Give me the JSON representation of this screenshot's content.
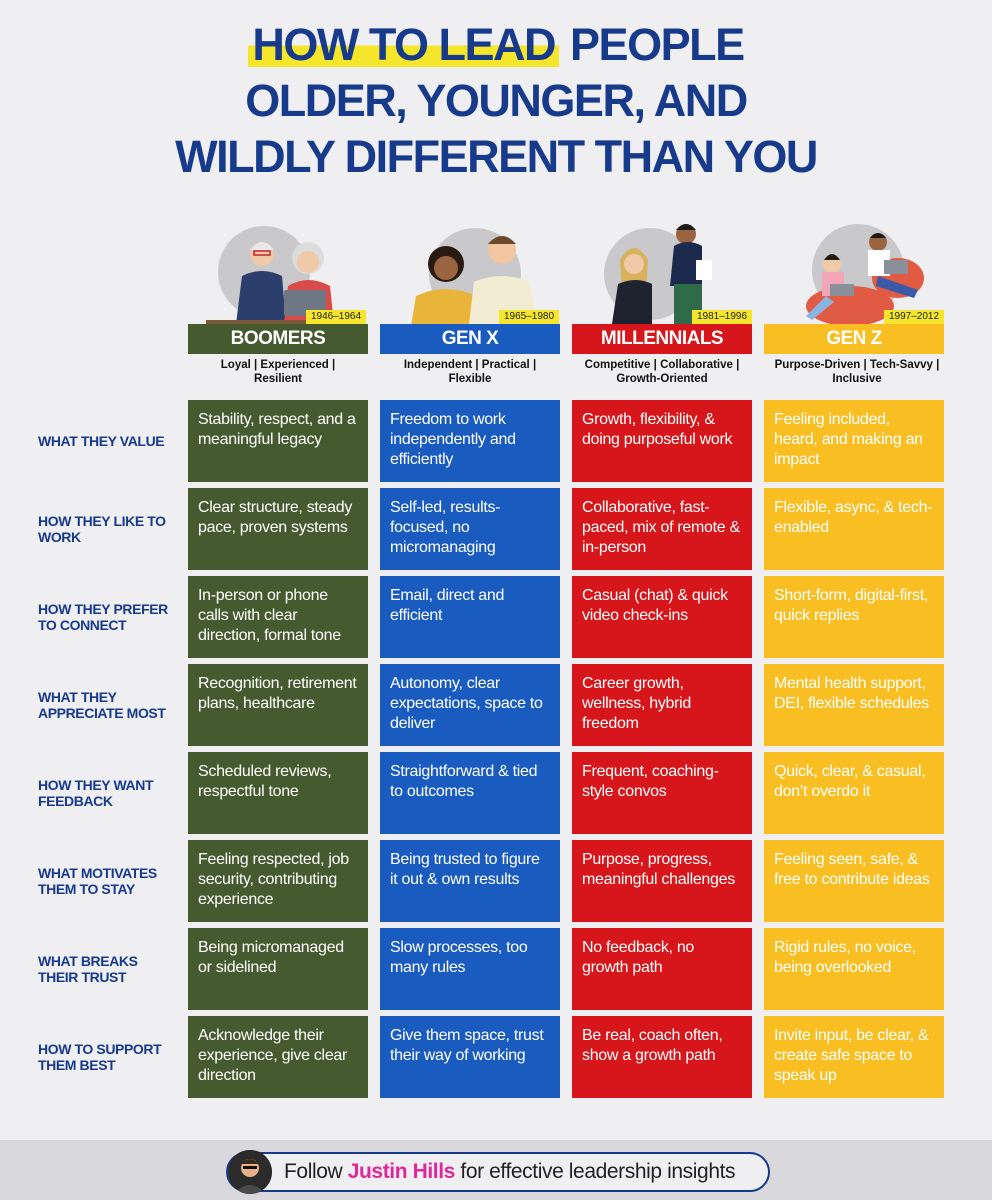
{
  "title": {
    "line1_highlight": "HOW TO LEAD",
    "line1_rest": "PEOPLE",
    "line2": "OLDER, YOUNGER, AND",
    "line3": "WILDLY DIFFERENT THAN YOU"
  },
  "colors": {
    "title_blue": "#173a8a",
    "highlight_yellow": "#f5e62c",
    "boomers": "#455b2f",
    "genx": "#1a5bc0",
    "millennials": "#d7161b",
    "genz": "#f8be22",
    "footer_name": "#e0269b"
  },
  "generations": [
    {
      "name": "BOOMERS",
      "years": "1946–1964",
      "traits": "Loyal | Experienced | Resilient"
    },
    {
      "name": "GEN X",
      "years": "1965–1980",
      "traits": "Independent | Practical | Flexible"
    },
    {
      "name": "MILLENNIALS",
      "years": "1981–1996",
      "traits": "Competitive | Collaborative | Growth-Oriented"
    },
    {
      "name": "GEN Z",
      "years": "1997–2012",
      "traits": "Purpose-Driven | Tech-Savvy | Inclusive"
    }
  ],
  "rows": [
    {
      "label": "WHAT THEY VALUE",
      "cells": [
        "Stability, respect, and a meaningful legacy",
        "Freedom to work independently and efficiently",
        "Growth, flexibility, & doing purposeful work",
        "Feeling included, heard, and making an impact"
      ]
    },
    {
      "label": "HOW THEY LIKE TO WORK",
      "cells": [
        "Clear structure, steady pace, proven systems",
        "Self-led, results-focused, no micromanaging",
        "Collaborative, fast-paced, mix of remote & in-person",
        "Flexible, async, & tech-enabled"
      ]
    },
    {
      "label": "HOW THEY PREFER TO CONNECT",
      "cells": [
        "In-person or phone calls with clear direction, formal tone",
        "Email, direct and efficient",
        "Casual (chat) & quick video check-ins",
        "Short-form, digital-first, quick replies"
      ]
    },
    {
      "label": "WHAT THEY APPRECIATE MOST",
      "cells": [
        "Recognition, retirement plans, healthcare",
        "Autonomy, clear expectations, space to deliver",
        "Career growth, wellness, hybrid freedom",
        "Mental health support, DEI, flexible schedules"
      ]
    },
    {
      "label": "HOW THEY WANT FEEDBACK",
      "cells": [
        "Scheduled reviews, respectful tone",
        "Straightforward & tied to outcomes",
        "Frequent, coaching-style convos",
        "Quick, clear, & casual,  don’t overdo it"
      ]
    },
    {
      "label": "WHAT MOTIVATES THEM TO STAY",
      "cells": [
        "Feeling respected, job security, contributing experience",
        "Being trusted to figure it out & own results",
        "Purpose, progress, meaningful challenges",
        "Feeling seen, safe, & free to contribute ideas"
      ]
    },
    {
      "label": "WHAT BREAKS THEIR TRUST",
      "cells": [
        "Being micromanaged or sidelined",
        "Slow processes, too many rules",
        "No feedback, no growth path",
        "Rigid rules, no voice, being overlooked"
      ]
    },
    {
      "label": "HOW TO SUPPORT THEM BEST",
      "cells": [
        "Acknowledge their experience,  give clear direction",
        "Give them space, trust their way of working",
        "Be real, coach often, show a growth path",
        "Invite input, be clear, & create safe space to speak up"
      ]
    }
  ],
  "footer": {
    "prefix": "Follow ",
    "name": "Justin Hills",
    "suffix": " for effective leadership insights"
  }
}
